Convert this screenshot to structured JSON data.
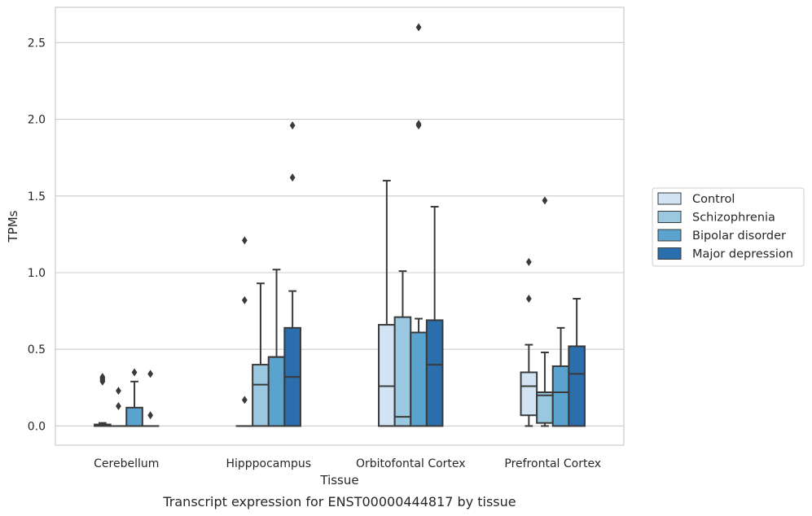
{
  "caption": "Transcript expression for ENST00000444817 by tissue",
  "chart_data": {
    "type": "boxplot",
    "title": "",
    "xlabel": "Tissue",
    "ylabel": "TPMs",
    "ylim": [
      -0.125,
      2.73
    ],
    "yticks": [
      0.0,
      0.5,
      1.0,
      1.5,
      2.0,
      2.5
    ],
    "ytick_labels": [
      "0.0",
      "0.5",
      "1.0",
      "1.5",
      "2.0",
      "2.5"
    ],
    "grid": "horizontal",
    "legend_position": "right",
    "categories": [
      "Cerebellum",
      "Hipppocampus",
      "Orbitofontal Cortex",
      "Prefrontal Cortex"
    ],
    "series": [
      {
        "name": "Control",
        "color": "#d2e3f3",
        "boxes": [
          {
            "q1": 0.0,
            "median": 0.005,
            "q3": 0.01,
            "whisker_low": 0.0,
            "whisker_high": 0.02,
            "outliers": [
              0.29,
              0.3,
              0.31,
              0.32
            ]
          },
          {
            "q1": 0.0,
            "median": 0.0,
            "q3": 0.0,
            "whisker_low": 0.0,
            "whisker_high": 0.0,
            "outliers": [
              1.21,
              0.82,
              0.17
            ]
          },
          {
            "q1": 0.0,
            "median": 0.26,
            "q3": 0.66,
            "whisker_low": 0.0,
            "whisker_high": 1.6,
            "outliers": []
          },
          {
            "q1": 0.07,
            "median": 0.26,
            "q3": 0.35,
            "whisker_low": 0.0,
            "whisker_high": 0.53,
            "outliers": [
              1.07,
              0.83
            ]
          }
        ]
      },
      {
        "name": "Schizophrenia",
        "color": "#9ac8e0",
        "boxes": [
          {
            "q1": 0.0,
            "median": 0.0,
            "q3": 0.0,
            "whisker_low": 0.0,
            "whisker_high": 0.0,
            "outliers": [
              0.23,
              0.13
            ]
          },
          {
            "q1": 0.0,
            "median": 0.27,
            "q3": 0.4,
            "whisker_low": 0.0,
            "whisker_high": 0.93,
            "outliers": []
          },
          {
            "q1": 0.0,
            "median": 0.06,
            "q3": 0.71,
            "whisker_low": 0.0,
            "whisker_high": 1.01,
            "outliers": []
          },
          {
            "q1": 0.02,
            "median": 0.2,
            "q3": 0.22,
            "whisker_low": 0.0,
            "whisker_high": 0.48,
            "outliers": [
              1.47
            ]
          }
        ]
      },
      {
        "name": "Bipolar disorder",
        "color": "#5ba3cf",
        "boxes": [
          {
            "q1": 0.0,
            "median": 0.0,
            "q3": 0.12,
            "whisker_low": 0.0,
            "whisker_high": 0.29,
            "outliers": [
              0.35
            ]
          },
          {
            "q1": 0.0,
            "median": 0.45,
            "q3": 0.45,
            "whisker_low": 0.0,
            "whisker_high": 1.02,
            "outliers": []
          },
          {
            "q1": 0.0,
            "median": 0.61,
            "q3": 0.61,
            "whisker_low": 0.0,
            "whisker_high": 0.7,
            "outliers": [
              2.6,
              1.97,
              1.96
            ]
          },
          {
            "q1": 0.0,
            "median": 0.22,
            "q3": 0.39,
            "whisker_low": 0.0,
            "whisker_high": 0.64,
            "outliers": []
          }
        ]
      },
      {
        "name": "Major depression",
        "color": "#2a6ead",
        "boxes": [
          {
            "q1": 0.0,
            "median": 0.0,
            "q3": 0.0,
            "whisker_low": 0.0,
            "whisker_high": 0.0,
            "outliers": [
              0.34,
              0.07
            ]
          },
          {
            "q1": 0.0,
            "median": 0.32,
            "q3": 0.64,
            "whisker_low": 0.0,
            "whisker_high": 0.88,
            "outliers": [
              1.96,
              1.62
            ]
          },
          {
            "q1": 0.0,
            "median": 0.4,
            "q3": 0.69,
            "whisker_low": 0.0,
            "whisker_high": 1.43,
            "outliers": []
          },
          {
            "q1": 0.0,
            "median": 0.34,
            "q3": 0.52,
            "whisker_low": 0.0,
            "whisker_high": 0.83,
            "outliers": []
          }
        ]
      }
    ]
  }
}
